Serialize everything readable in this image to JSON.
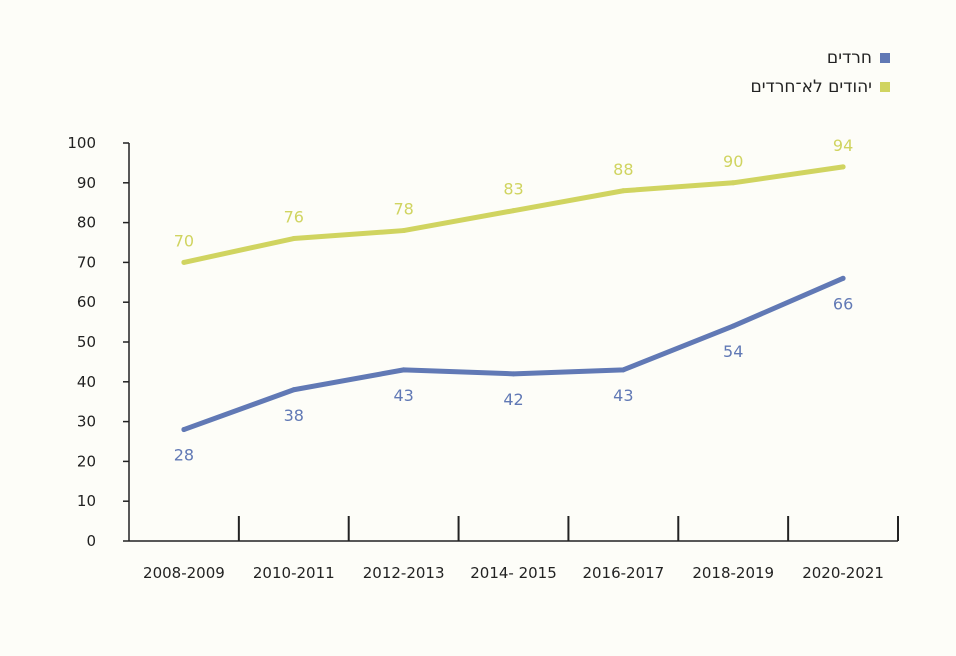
{
  "chart_data": {
    "type": "line",
    "categories": [
      "2008-2009",
      "2010-2011",
      "2012-2013",
      "2014- 2015",
      "2016-2017",
      "2018-2019",
      "2020-2021"
    ],
    "ylim": [
      0,
      100
    ],
    "yticks": [
      0,
      10,
      20,
      30,
      40,
      50,
      60,
      70,
      80,
      90,
      100
    ],
    "legend_position": "top-right",
    "series": [
      {
        "name": "חרדים",
        "color": "#6179b5",
        "values": [
          28,
          38,
          43,
          42,
          43,
          54,
          66
        ],
        "labels": [
          "28",
          "38",
          "43",
          "42",
          "43",
          "54",
          "66"
        ],
        "label_side": "below"
      },
      {
        "name": "יהודים לא־חרדים",
        "color": "#d0d460",
        "values": [
          70,
          76,
          78,
          83,
          88,
          90,
          94
        ],
        "labels": [
          "70",
          "76",
          "78",
          "83",
          "88",
          "90",
          "94"
        ],
        "label_side": "above"
      }
    ]
  }
}
